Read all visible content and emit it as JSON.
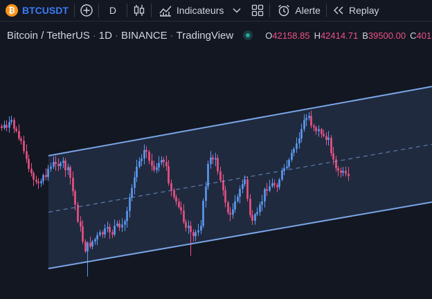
{
  "toolbar": {
    "symbol": "BTCUSDT",
    "coin_letter": "₿",
    "interval": "D",
    "indicators_label": "Indicateurs",
    "alert_label": "Alerte",
    "replay_label": "Replay",
    "icons": [
      "add-symbol-icon",
      "candles-icon",
      "indicators-icon",
      "layout-grid-icon",
      "alarm-clock-icon",
      "replay-icon"
    ]
  },
  "legend": {
    "pair": "Bitcoin / TetherUS",
    "interval": "1D",
    "exchange": "BINANCE",
    "source": "TradingView",
    "sep": "·",
    "open_key": "O",
    "open_val": "42158.85",
    "high_key": "H",
    "high_val": "42414.71",
    "low_key": "B",
    "low_val": "39500.00",
    "close_key": "C",
    "close_val": "401"
  },
  "colors": {
    "background": "#131722",
    "up": "#5b9cf6",
    "down": "#ef5185",
    "channel_line": "#7aa6e8",
    "channel_fill": "#2b3a55",
    "accent": "#3b7bf5",
    "status": "#26a69a"
  },
  "chart_data": {
    "type": "candlestick",
    "drawing": "parallel channel",
    "candles_close_trend": [
      {
        "c": "down"
      },
      {
        "c": "up"
      },
      {
        "c": "down"
      },
      {
        "c": "up"
      },
      {
        "c": "down"
      },
      {
        "c": "down"
      },
      {
        "c": "down"
      },
      {
        "c": "down"
      },
      {
        "c": "down"
      },
      {
        "c": "down"
      },
      {
        "c": "up"
      },
      {
        "c": "up"
      },
      {
        "c": "down"
      },
      {
        "c": "down"
      },
      {
        "c": "up"
      },
      {
        "c": "down"
      }
    ]
  }
}
